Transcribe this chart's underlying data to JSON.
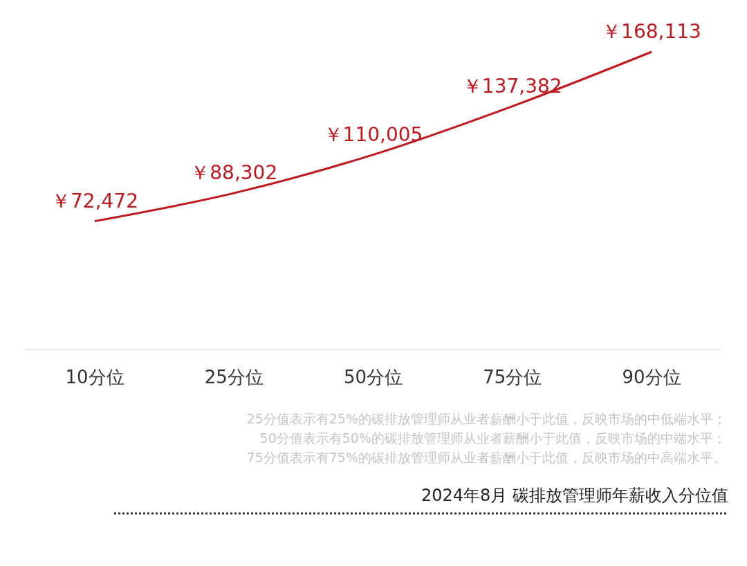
{
  "chart_data": {
    "type": "line",
    "title": "2024年8月 碳排放管理师年薪收入分位值",
    "categories": [
      "10分位",
      "25分位",
      "50分位",
      "75分位",
      "90分位"
    ],
    "series": [
      {
        "color": "#c0161c",
        "values": [
          72472,
          88302,
          110005,
          137382,
          168113
        ],
        "value_labels": [
          "￥72,472",
          "￥88,302",
          "￥110,005",
          "￥137,382",
          "￥168,113"
        ]
      }
    ],
    "grid": false,
    "marker": "none",
    "line_style": "solid",
    "tick_labels": "x",
    "annotations": [
      "25分值表示有25%的碳排放管理师从业者薪酬小于此值，反映市场的中低端水平；",
      "50分值表示有50%的碳排放管理师从业者薪酬小于此值，反映市场的中端水平；",
      "75分值表示有75%的碳排放管理师从业者薪酬小于此值，反映市场的中高端水平。"
    ]
  }
}
